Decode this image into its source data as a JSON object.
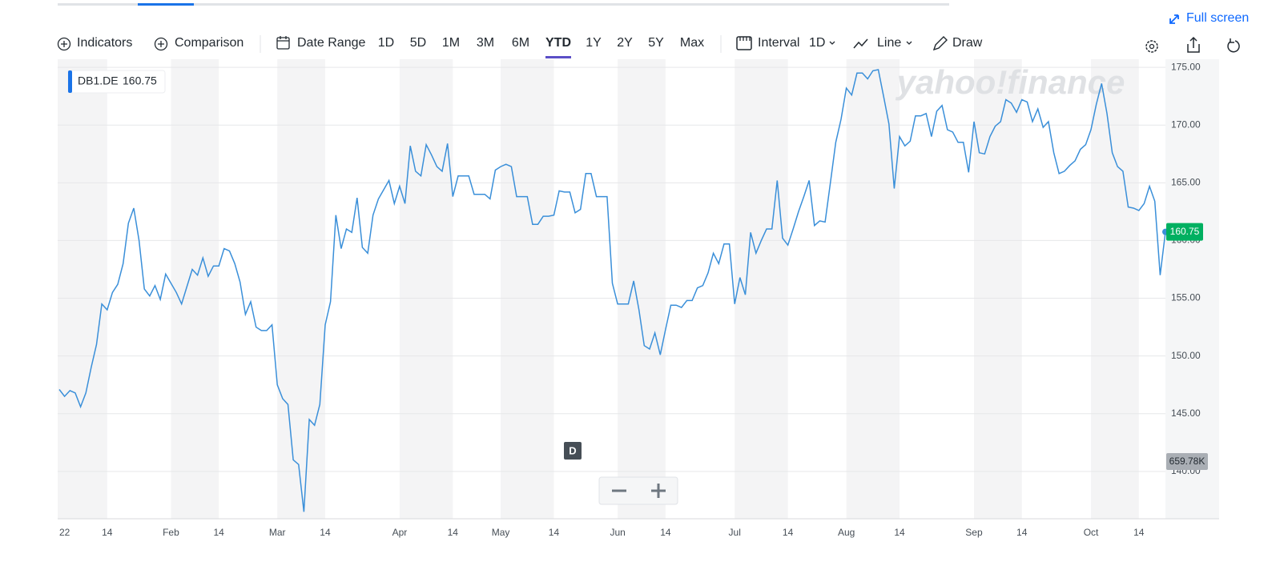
{
  "toolbar": {
    "full_screen": "Full screen",
    "indicators": "Indicators",
    "comparison": "Comparison",
    "date_range": "Date Range",
    "ranges": [
      "1D",
      "5D",
      "1M",
      "3M",
      "6M",
      "YTD",
      "1Y",
      "2Y",
      "5Y",
      "Max"
    ],
    "active_range_index": 5,
    "interval": "Interval",
    "interval_value": "1D",
    "chart_style": "Line",
    "draw": "Draw"
  },
  "marker_label": "D",
  "chart_data": {
    "type": "line",
    "watermark": "yahoo!finance",
    "volume_label": "659.78K",
    "categories": [
      null,
      "22",
      null,
      null,
      null,
      null,
      null,
      null,
      null,
      "14",
      null,
      null,
      null,
      null,
      null,
      null,
      null,
      null,
      null,
      null,
      null,
      "Feb",
      null,
      null,
      null,
      null,
      null,
      null,
      null,
      null,
      "14",
      null,
      null,
      null,
      null,
      null,
      null,
      null,
      null,
      null,
      null,
      "Mar",
      null,
      null,
      null,
      null,
      null,
      null,
      null,
      null,
      "14",
      null,
      null,
      null,
      null,
      null,
      null,
      null,
      null,
      null,
      null,
      null,
      null,
      null,
      "Apr",
      null,
      null,
      null,
      null,
      null,
      null,
      null,
      null,
      null,
      "14",
      null,
      null,
      null,
      null,
      null,
      null,
      null,
      null,
      "May",
      null,
      null,
      null,
      null,
      null,
      null,
      null,
      null,
      null,
      "14",
      null,
      null,
      null,
      null,
      null,
      null,
      null,
      null,
      null,
      null,
      null,
      "Jun",
      null,
      null,
      null,
      null,
      null,
      null,
      null,
      null,
      "14",
      null,
      null,
      null,
      null,
      null,
      null,
      null,
      null,
      null,
      null,
      null,
      null,
      "Jul",
      null,
      null,
      null,
      null,
      null,
      null,
      null,
      null,
      null,
      "14",
      null,
      null,
      null,
      null,
      null,
      null,
      null,
      null,
      null,
      null,
      "Aug",
      null,
      null,
      null,
      null,
      null,
      null,
      null,
      null,
      null,
      "14",
      null,
      null,
      null,
      null,
      null,
      null,
      null,
      null,
      null,
      null,
      null,
      null,
      null,
      "Sep",
      null,
      null,
      null,
      null,
      null,
      null,
      null,
      null,
      "14",
      null,
      null,
      null,
      null,
      null,
      null,
      null,
      null,
      null,
      null,
      null,
      null,
      "Oct",
      null,
      null,
      null,
      null,
      null,
      null,
      null,
      null,
      "14",
      null,
      null,
      null,
      null,
      null
    ],
    "series": [
      {
        "name": "DB1.DE",
        "color": "#3a8fd9",
        "values": [
          147.1,
          146.5,
          147,
          146.8,
          145.6,
          146.8,
          149,
          151,
          154.5,
          154,
          155.5,
          156.2,
          158,
          161.5,
          162.8,
          160,
          155.8,
          155.2,
          156.1,
          154.9,
          157.1,
          156.3,
          155.5,
          154.5,
          156,
          157.5,
          157,
          158.5,
          156.9,
          157.8,
          157.8,
          159.3,
          159.1,
          158,
          156.4,
          153.6,
          154.7,
          152.5,
          152.2,
          152.2,
          152.7,
          147.5,
          146.3,
          145.8,
          141,
          140.6,
          136.5,
          144.5,
          144,
          145.8,
          152.7,
          154.7,
          162.2,
          159.3,
          161,
          160.7,
          163.7,
          159.4,
          158.9,
          162.2,
          163.6,
          164.4,
          165.2,
          163.2,
          164.7,
          163.2,
          168.2,
          166,
          165.6,
          168.3,
          167.4,
          166.4,
          166,
          168.4,
          163.8,
          165.6,
          165.6,
          165.6,
          164,
          164,
          164,
          163.6,
          166.1,
          166.4,
          166.6,
          166.4,
          163.8,
          163.8,
          163.8,
          161.4,
          161.4,
          162.1,
          162.1,
          162.2,
          164.3,
          164.2,
          164.2,
          162.4,
          162.7,
          165.8,
          165.8,
          163.8,
          163.8,
          163.8,
          156.3,
          154.5,
          154.5,
          154.5,
          156.5,
          154,
          150.9,
          150.6,
          152,
          150.1,
          152.3,
          154.4,
          154.4,
          154.2,
          154.8,
          154.8,
          155.9,
          156.1,
          157.2,
          158.9,
          158,
          159.7,
          159.7,
          154.5,
          156.8,
          155.3,
          160.7,
          158.9,
          160,
          161,
          161,
          165.2,
          160.2,
          159.6,
          161,
          162.5,
          163.8,
          165.2,
          161.3,
          161.7,
          161.6,
          165,
          168.5,
          170.5,
          173.2,
          172.6,
          174.5,
          174.5,
          174,
          174.7,
          174.8,
          172.5,
          170.1,
          164.5,
          169,
          168.2,
          168.6,
          170.8,
          170.8,
          171,
          169,
          171.2,
          171.7,
          169.6,
          169.4,
          168.5,
          168.5,
          165.9,
          170.3,
          167.6,
          167.5,
          169,
          169.9,
          170.3,
          172.2,
          171.9,
          171.1,
          172.2,
          172,
          170.3,
          171.4,
          169.8,
          170.3,
          167.6,
          165.8,
          166,
          166.5,
          166.9,
          167.9,
          168.3,
          169.6,
          171.8,
          173.6,
          171,
          167.6,
          166.4,
          166,
          162.9,
          162.8,
          162.6,
          163.2,
          164.7,
          163.4,
          157,
          160.75
        ]
      }
    ],
    "ylim": [
      135.9,
      175.7
    ],
    "yticks": [
      {
        "value": 140,
        "label": "140.00"
      },
      {
        "value": 145,
        "label": "145.00"
      },
      {
        "value": 150,
        "label": "150.00"
      },
      {
        "value": 155,
        "label": "155.00"
      },
      {
        "value": 160,
        "label": "160.00"
      },
      {
        "value": 165,
        "label": "165.00"
      },
      {
        "value": 170,
        "label": "170.00"
      },
      {
        "value": 175,
        "label": "175.00"
      }
    ],
    "grid": true,
    "last_price_color": "#00b061"
  }
}
